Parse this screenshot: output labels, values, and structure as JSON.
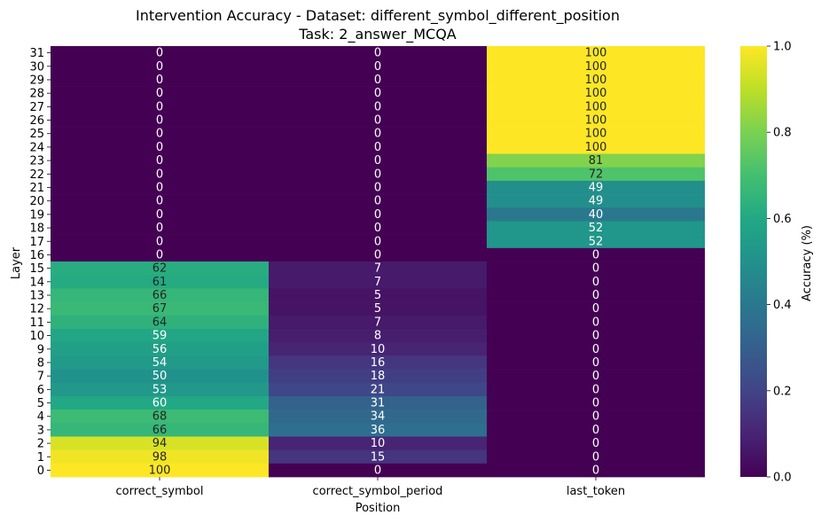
{
  "chart_data": {
    "type": "heatmap",
    "title": "Intervention Accuracy - Dataset: different_symbol_different_position",
    "subtitle": "Task: 2_answer_MCQA",
    "xlabel": "Position",
    "ylabel": "Layer",
    "columns": [
      "correct_symbol",
      "correct_symbol_period",
      "last_token"
    ],
    "rows": [
      "31",
      "30",
      "29",
      "28",
      "27",
      "26",
      "25",
      "24",
      "23",
      "22",
      "21",
      "20",
      "19",
      "18",
      "17",
      "16",
      "15",
      "14",
      "13",
      "12",
      "11",
      "10",
      "9",
      "8",
      "7",
      "6",
      "5",
      "4",
      "3",
      "2",
      "1",
      "0"
    ],
    "values": [
      [
        0,
        0,
        100
      ],
      [
        0,
        0,
        100
      ],
      [
        0,
        0,
        100
      ],
      [
        0,
        0,
        100
      ],
      [
        0,
        0,
        100
      ],
      [
        0,
        0,
        100
      ],
      [
        0,
        0,
        100
      ],
      [
        0,
        0,
        100
      ],
      [
        0,
        0,
        81
      ],
      [
        0,
        0,
        72
      ],
      [
        0,
        0,
        49
      ],
      [
        0,
        0,
        49
      ],
      [
        0,
        0,
        40
      ],
      [
        0,
        0,
        52
      ],
      [
        0,
        0,
        52
      ],
      [
        0,
        0,
        0
      ],
      [
        62,
        7,
        0
      ],
      [
        61,
        7,
        0
      ],
      [
        66,
        5,
        0
      ],
      [
        67,
        5,
        0
      ],
      [
        64,
        7,
        0
      ],
      [
        59,
        8,
        0
      ],
      [
        56,
        10,
        0
      ],
      [
        54,
        16,
        0
      ],
      [
        50,
        18,
        0
      ],
      [
        53,
        21,
        0
      ],
      [
        60,
        31,
        0
      ],
      [
        68,
        34,
        0
      ],
      [
        66,
        36,
        0
      ],
      [
        94,
        10,
        0
      ],
      [
        98,
        15,
        0
      ],
      [
        100,
        0,
        0
      ]
    ],
    "colorbar": {
      "label": "Accuracy (%)",
      "range": [
        0,
        1
      ],
      "ticks": [
        "0.0",
        "0.2",
        "0.4",
        "0.6",
        "0.8",
        "1.0"
      ],
      "colormap": "viridis"
    }
  }
}
